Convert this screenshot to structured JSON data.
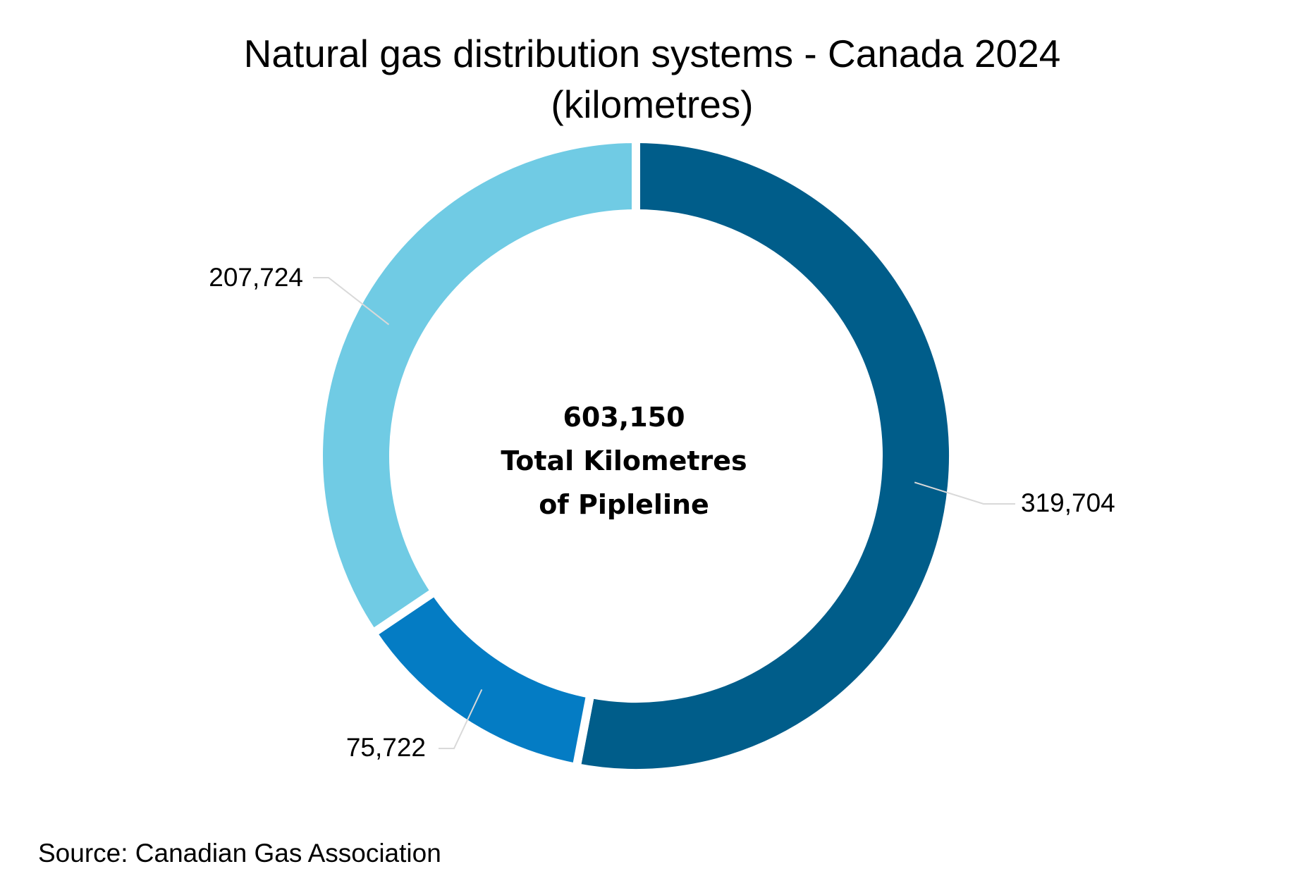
{
  "chart_data": {
    "type": "pie",
    "subtype": "donut",
    "title": [
      "Natural gas distribution systems - Canada 2024",
      "(kilometres)"
    ],
    "slices": [
      {
        "label": "319,704",
        "value": 319704,
        "color": "#005d8a"
      },
      {
        "label": "75,722",
        "value": 75722,
        "color": "#047cc4"
      },
      {
        "label": "207,724",
        "value": 207724,
        "color": "#70cbe4"
      }
    ],
    "center_label": {
      "value": "603,150",
      "line1": "Total Kilometres",
      "line2": "of Pipleline"
    },
    "source": "Source: Canadian Gas Association",
    "legend": "none",
    "slice_separator_color": "#ffffff"
  }
}
